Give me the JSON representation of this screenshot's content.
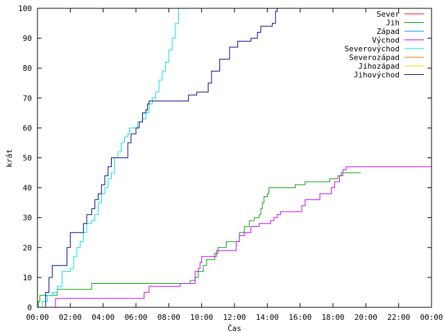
{
  "chart_data": {
    "type": "line",
    "xlabel": "Čas",
    "ylabel": "krát",
    "x_unit": "hours",
    "xlim": [
      0,
      24
    ],
    "ylim": [
      0,
      100
    ],
    "x_ticks": [
      {
        "value": 0,
        "label": "00:00"
      },
      {
        "value": 2,
        "label": "02:00"
      },
      {
        "value": 4,
        "label": "04:00"
      },
      {
        "value": 6,
        "label": "06:00"
      },
      {
        "value": 8,
        "label": "08:00"
      },
      {
        "value": 10,
        "label": "10:00"
      },
      {
        "value": 12,
        "label": "12:00"
      },
      {
        "value": 14,
        "label": "14:00"
      },
      {
        "value": 16,
        "label": "16:00"
      },
      {
        "value": 18,
        "label": "18:00"
      },
      {
        "value": 20,
        "label": "20:00"
      },
      {
        "value": 22,
        "label": "22:00"
      },
      {
        "value": 24,
        "label": "00:00"
      }
    ],
    "y_ticks": [
      0,
      10,
      20,
      30,
      40,
      50,
      60,
      70,
      80,
      90,
      100
    ],
    "grid": false,
    "legend_position": "top-right",
    "series": [
      {
        "name": "Sever",
        "color": "#ff0000",
        "points": []
      },
      {
        "name": "Jih",
        "color": "#00a000",
        "points": [
          [
            0.0,
            0
          ],
          [
            0.05,
            2
          ],
          [
            0.15,
            4
          ],
          [
            0.6,
            4
          ],
          [
            1.2,
            6
          ],
          [
            3.2,
            6
          ],
          [
            3.3,
            8
          ],
          [
            9.0,
            8
          ],
          [
            9.3,
            9
          ],
          [
            9.6,
            10
          ],
          [
            9.8,
            12
          ],
          [
            10.1,
            14
          ],
          [
            10.3,
            16
          ],
          [
            10.8,
            18
          ],
          [
            11.0,
            20
          ],
          [
            11.5,
            22
          ],
          [
            12.0,
            22
          ],
          [
            12.3,
            25
          ],
          [
            12.6,
            27
          ],
          [
            12.9,
            29
          ],
          [
            13.2,
            30
          ],
          [
            13.5,
            31
          ],
          [
            13.6,
            33
          ],
          [
            13.7,
            35
          ],
          [
            13.8,
            37
          ],
          [
            14.0,
            38
          ],
          [
            14.1,
            40
          ],
          [
            15.5,
            40
          ],
          [
            15.7,
            41
          ],
          [
            16.0,
            41
          ],
          [
            16.3,
            42
          ],
          [
            17.5,
            42
          ],
          [
            17.8,
            43
          ],
          [
            18.0,
            43
          ],
          [
            18.3,
            44
          ],
          [
            18.5,
            45
          ],
          [
            19.5,
            45
          ],
          [
            19.7,
            45
          ]
        ]
      },
      {
        "name": "Západ",
        "color": "#0080ff",
        "points": []
      },
      {
        "name": "Východ",
        "color": "#c000ff",
        "points": [
          [
            1.0,
            0
          ],
          [
            1.1,
            3
          ],
          [
            6.4,
            3
          ],
          [
            6.5,
            5
          ],
          [
            6.8,
            7
          ],
          [
            8.6,
            7
          ],
          [
            8.7,
            8
          ],
          [
            9.5,
            8
          ],
          [
            9.6,
            12
          ],
          [
            9.8,
            13
          ],
          [
            9.9,
            15
          ],
          [
            10.0,
            17
          ],
          [
            10.7,
            17
          ],
          [
            10.9,
            19
          ],
          [
            11.9,
            19
          ],
          [
            12.1,
            22
          ],
          [
            12.3,
            24
          ],
          [
            12.6,
            25
          ],
          [
            13.0,
            27
          ],
          [
            13.5,
            28
          ],
          [
            14.0,
            28
          ],
          [
            14.2,
            29
          ],
          [
            14.4,
            30
          ],
          [
            14.6,
            31
          ],
          [
            14.8,
            32
          ],
          [
            15.9,
            32
          ],
          [
            16.1,
            34
          ],
          [
            16.3,
            36
          ],
          [
            16.8,
            36
          ],
          [
            17.2,
            38
          ],
          [
            17.7,
            38
          ],
          [
            17.9,
            40
          ],
          [
            18.1,
            42
          ],
          [
            18.3,
            42
          ],
          [
            18.4,
            44
          ],
          [
            18.6,
            46
          ],
          [
            18.8,
            47
          ],
          [
            24.0,
            47
          ]
        ]
      },
      {
        "name": "Severovýchod",
        "color": "#00e0e0",
        "points": [
          [
            0.1,
            0
          ],
          [
            0.3,
            2
          ],
          [
            0.6,
            4
          ],
          [
            0.9,
            5
          ],
          [
            1.2,
            7
          ],
          [
            1.5,
            12
          ],
          [
            2.0,
            13
          ],
          [
            2.2,
            17
          ],
          [
            2.4,
            20
          ],
          [
            2.6,
            22
          ],
          [
            2.8,
            25
          ],
          [
            3.0,
            28
          ],
          [
            3.3,
            29
          ],
          [
            3.5,
            31
          ],
          [
            3.7,
            35
          ],
          [
            3.9,
            38
          ],
          [
            4.1,
            40
          ],
          [
            4.3,
            43
          ],
          [
            4.5,
            45
          ],
          [
            4.7,
            50
          ],
          [
            4.9,
            52
          ],
          [
            5.1,
            55
          ],
          [
            5.3,
            57
          ],
          [
            5.5,
            58
          ],
          [
            5.6,
            60
          ],
          [
            5.9,
            60
          ],
          [
            6.1,
            62
          ],
          [
            6.4,
            63
          ],
          [
            6.6,
            65
          ],
          [
            6.8,
            68
          ],
          [
            7.0,
            70
          ],
          [
            7.2,
            72
          ],
          [
            7.4,
            76
          ],
          [
            7.6,
            79
          ],
          [
            7.8,
            82
          ],
          [
            8.0,
            86
          ],
          [
            8.2,
            90
          ],
          [
            8.4,
            95
          ],
          [
            8.6,
            100
          ]
        ]
      },
      {
        "name": "Severozápad",
        "color": "#ff8000",
        "points": []
      },
      {
        "name": "Jihozápad",
        "color": "#ffd700",
        "points": []
      },
      {
        "name": "Jihovýchod",
        "color": "#000090",
        "points": [
          [
            0.3,
            0
          ],
          [
            0.5,
            5
          ],
          [
            0.7,
            10
          ],
          [
            0.9,
            14
          ],
          [
            1.6,
            14
          ],
          [
            1.8,
            20
          ],
          [
            2.0,
            25
          ],
          [
            2.6,
            25
          ],
          [
            2.8,
            28
          ],
          [
            3.0,
            31
          ],
          [
            3.3,
            33
          ],
          [
            3.5,
            36
          ],
          [
            3.7,
            38
          ],
          [
            3.9,
            41
          ],
          [
            4.1,
            44
          ],
          [
            4.3,
            47
          ],
          [
            4.5,
            50
          ],
          [
            5.3,
            50
          ],
          [
            5.5,
            55
          ],
          [
            5.7,
            58
          ],
          [
            6.0,
            60
          ],
          [
            6.2,
            62
          ],
          [
            6.4,
            65
          ],
          [
            6.6,
            66
          ],
          [
            6.7,
            68
          ],
          [
            6.8,
            69
          ],
          [
            9.0,
            69
          ],
          [
            9.2,
            71
          ],
          [
            9.5,
            71
          ],
          [
            9.7,
            72
          ],
          [
            10.2,
            72
          ],
          [
            10.4,
            75
          ],
          [
            10.6,
            79
          ],
          [
            10.9,
            79
          ],
          [
            11.1,
            83
          ],
          [
            11.5,
            83
          ],
          [
            11.7,
            87
          ],
          [
            12.0,
            87
          ],
          [
            12.2,
            89
          ],
          [
            12.8,
            89
          ],
          [
            13.0,
            90
          ],
          [
            13.2,
            90
          ],
          [
            13.4,
            92
          ],
          [
            13.6,
            94
          ],
          [
            14.0,
            94
          ],
          [
            14.3,
            95
          ],
          [
            14.5,
            99
          ],
          [
            14.6,
            100
          ]
        ]
      }
    ]
  }
}
